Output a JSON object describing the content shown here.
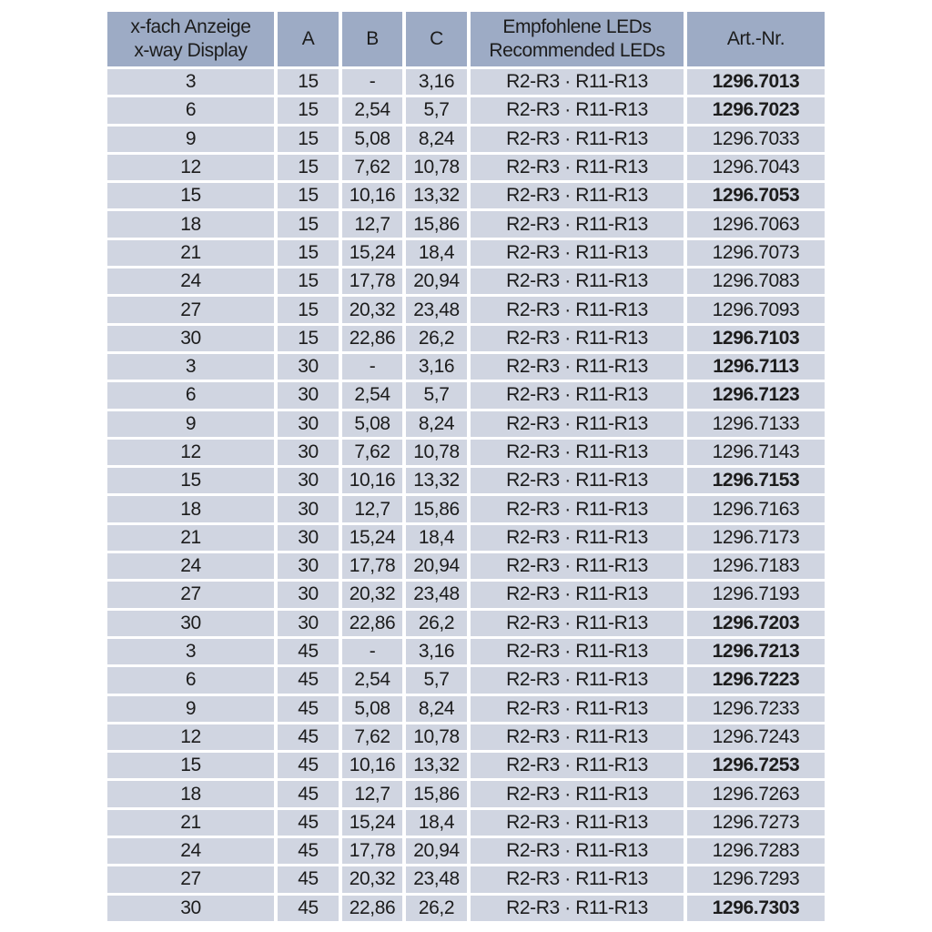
{
  "colors": {
    "page_bg": "#ffffff",
    "header_bg": "#9dabc5",
    "row_bg": "#d0d5e1",
    "text": "#1c1c1c"
  },
  "table": {
    "header": {
      "display_line1": "x-fach Anzeige",
      "display_line2": "x-way Display",
      "col_a": "A",
      "col_b": "B",
      "col_c": "C",
      "leds_line1": "Empfohlene LEDs",
      "leds_line2": "Recommended LEDs",
      "art": "Art.-Nr."
    },
    "rows": [
      {
        "display": "3",
        "a": "15",
        "b": "-",
        "c": "3,16",
        "leds": "R2-R3 · R11-R13",
        "art": "1296.7013",
        "art_bold": true
      },
      {
        "display": "6",
        "a": "15",
        "b": "2,54",
        "c": "5,7",
        "leds": "R2-R3 · R11-R13",
        "art": "1296.7023",
        "art_bold": true
      },
      {
        "display": "9",
        "a": "15",
        "b": "5,08",
        "c": "8,24",
        "leds": "R2-R3 · R11-R13",
        "art": "1296.7033",
        "art_bold": false
      },
      {
        "display": "12",
        "a": "15",
        "b": "7,62",
        "c": "10,78",
        "leds": "R2-R3 · R11-R13",
        "art": "1296.7043",
        "art_bold": false
      },
      {
        "display": "15",
        "a": "15",
        "b": "10,16",
        "c": "13,32",
        "leds": "R2-R3 · R11-R13",
        "art": "1296.7053",
        "art_bold": true
      },
      {
        "display": "18",
        "a": "15",
        "b": "12,7",
        "c": "15,86",
        "leds": "R2-R3 · R11-R13",
        "art": "1296.7063",
        "art_bold": false
      },
      {
        "display": "21",
        "a": "15",
        "b": "15,24",
        "c": "18,4",
        "leds": "R2-R3 · R11-R13",
        "art": "1296.7073",
        "art_bold": false
      },
      {
        "display": "24",
        "a": "15",
        "b": "17,78",
        "c": "20,94",
        "leds": "R2-R3 · R11-R13",
        "art": "1296.7083",
        "art_bold": false
      },
      {
        "display": "27",
        "a": "15",
        "b": "20,32",
        "c": "23,48",
        "leds": "R2-R3 · R11-R13",
        "art": "1296.7093",
        "art_bold": false
      },
      {
        "display": "30",
        "a": "15",
        "b": "22,86",
        "c": "26,2",
        "leds": "R2-R3 · R11-R13",
        "art": "1296.7103",
        "art_bold": true
      },
      {
        "display": "3",
        "a": "30",
        "b": "-",
        "c": "3,16",
        "leds": "R2-R3 · R11-R13",
        "art": "1296.7113",
        "art_bold": true
      },
      {
        "display": "6",
        "a": "30",
        "b": "2,54",
        "c": "5,7",
        "leds": "R2-R3 · R11-R13",
        "art": "1296.7123",
        "art_bold": true
      },
      {
        "display": "9",
        "a": "30",
        "b": "5,08",
        "c": "8,24",
        "leds": "R2-R3 · R11-R13",
        "art": "1296.7133",
        "art_bold": false
      },
      {
        "display": "12",
        "a": "30",
        "b": "7,62",
        "c": "10,78",
        "leds": "R2-R3 · R11-R13",
        "art": "1296.7143",
        "art_bold": false
      },
      {
        "display": "15",
        "a": "30",
        "b": "10,16",
        "c": "13,32",
        "leds": "R2-R3 · R11-R13",
        "art": "1296.7153",
        "art_bold": true
      },
      {
        "display": "18",
        "a": "30",
        "b": "12,7",
        "c": "15,86",
        "leds": "R2-R3 · R11-R13",
        "art": "1296.7163",
        "art_bold": false
      },
      {
        "display": "21",
        "a": "30",
        "b": "15,24",
        "c": "18,4",
        "leds": "R2-R3 · R11-R13",
        "art": "1296.7173",
        "art_bold": false
      },
      {
        "display": "24",
        "a": "30",
        "b": "17,78",
        "c": "20,94",
        "leds": "R2-R3 · R11-R13",
        "art": "1296.7183",
        "art_bold": false
      },
      {
        "display": "27",
        "a": "30",
        "b": "20,32",
        "c": "23,48",
        "leds": "R2-R3 · R11-R13",
        "art": "1296.7193",
        "art_bold": false
      },
      {
        "display": "30",
        "a": "30",
        "b": "22,86",
        "c": "26,2",
        "leds": "R2-R3 · R11-R13",
        "art": "1296.7203",
        "art_bold": true
      },
      {
        "display": "3",
        "a": "45",
        "b": "-",
        "c": "3,16",
        "leds": "R2-R3 · R11-R13",
        "art": "1296.7213",
        "art_bold": true
      },
      {
        "display": "6",
        "a": "45",
        "b": "2,54",
        "c": "5,7",
        "leds": "R2-R3 · R11-R13",
        "art": "1296.7223",
        "art_bold": true
      },
      {
        "display": "9",
        "a": "45",
        "b": "5,08",
        "c": "8,24",
        "leds": "R2-R3 · R11-R13",
        "art": "1296.7233",
        "art_bold": false
      },
      {
        "display": "12",
        "a": "45",
        "b": "7,62",
        "c": "10,78",
        "leds": "R2-R3 · R11-R13",
        "art": "1296.7243",
        "art_bold": false
      },
      {
        "display": "15",
        "a": "45",
        "b": "10,16",
        "c": "13,32",
        "leds": "R2-R3 · R11-R13",
        "art": "1296.7253",
        "art_bold": true
      },
      {
        "display": "18",
        "a": "45",
        "b": "12,7",
        "c": "15,86",
        "leds": "R2-R3 · R11-R13",
        "art": "1296.7263",
        "art_bold": false
      },
      {
        "display": "21",
        "a": "45",
        "b": "15,24",
        "c": "18,4",
        "leds": "R2-R3 · R11-R13",
        "art": "1296.7273",
        "art_bold": false
      },
      {
        "display": "24",
        "a": "45",
        "b": "17,78",
        "c": "20,94",
        "leds": "R2-R3 · R11-R13",
        "art": "1296.7283",
        "art_bold": false
      },
      {
        "display": "27",
        "a": "45",
        "b": "20,32",
        "c": "23,48",
        "leds": "R2-R3 · R11-R13",
        "art": "1296.7293",
        "art_bold": false
      },
      {
        "display": "30",
        "a": "45",
        "b": "22,86",
        "c": "26,2",
        "leds": "R2-R3 · R11-R13",
        "art": "1296.7303",
        "art_bold": true
      }
    ]
  }
}
